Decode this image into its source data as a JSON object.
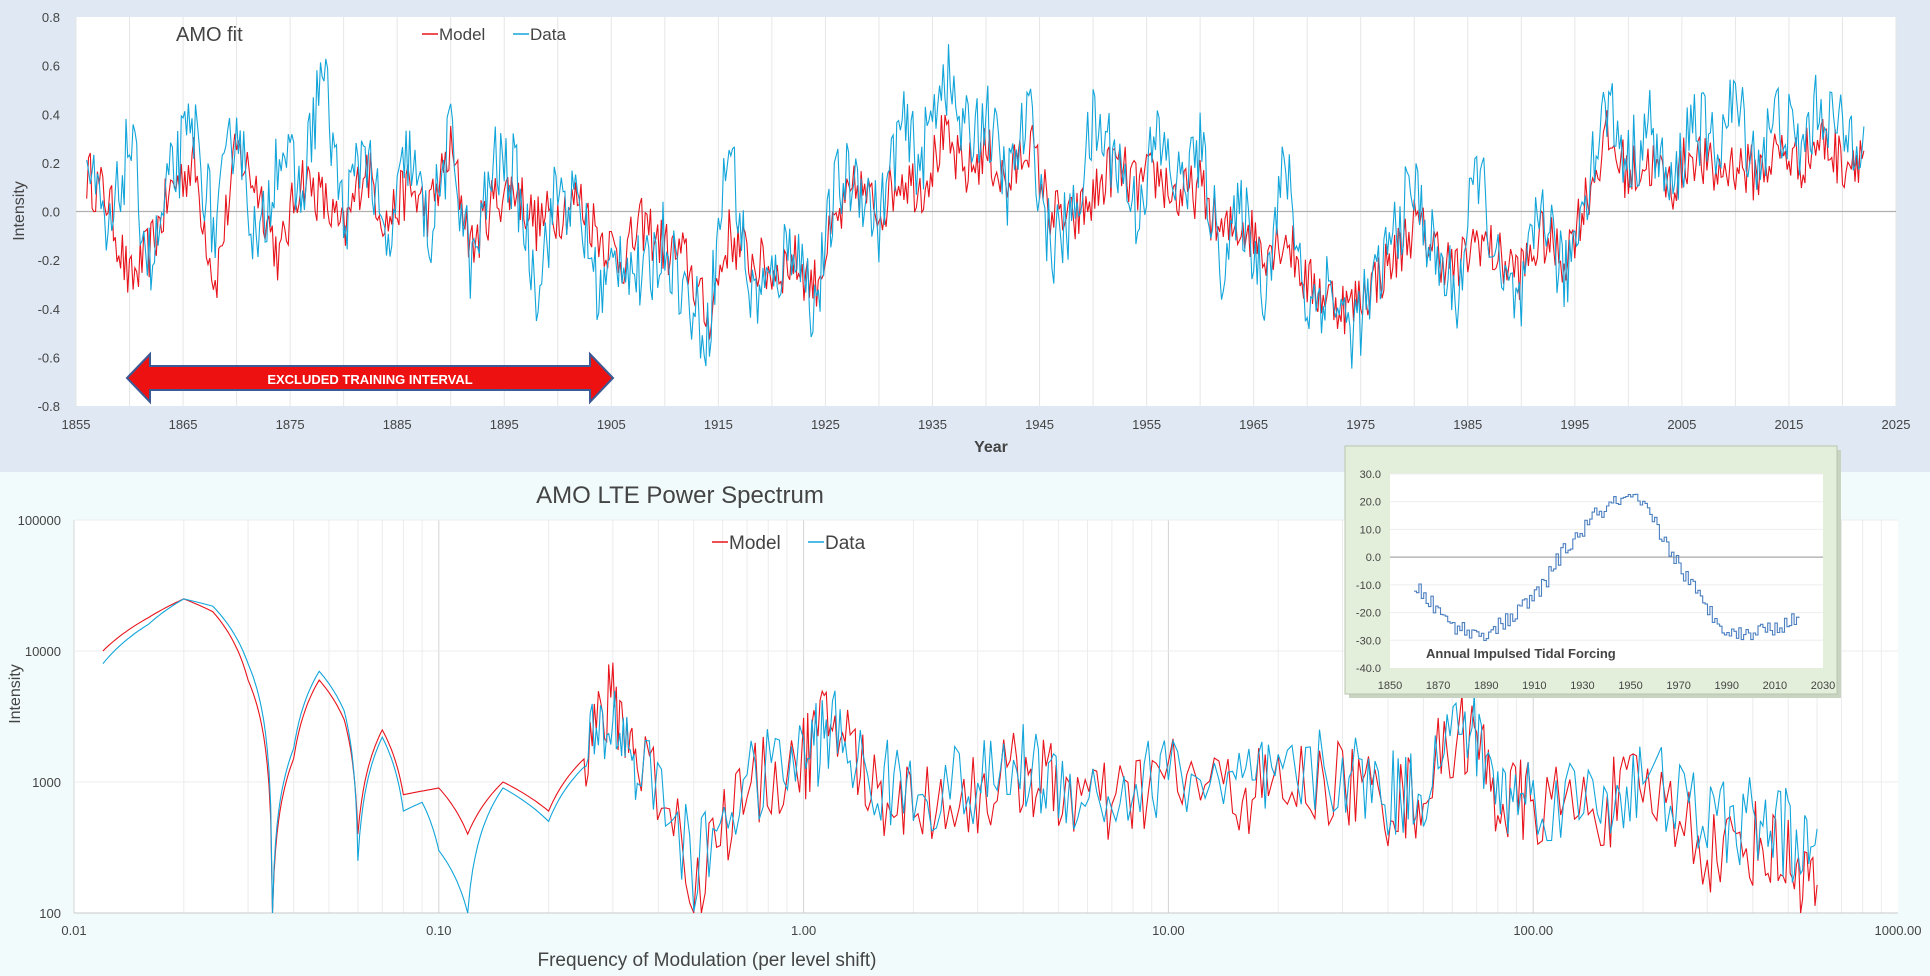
{
  "colors": {
    "model": "#e8141c",
    "data": "#12a5da",
    "top_background": "#dfe8f3",
    "bottom_background": "#f2fbfc",
    "inset_background": "#e4efdb",
    "inset_line": "#4a7fc0",
    "arrow": "#ee1111",
    "arrow_border": "#3c5a96"
  },
  "chart_data": [
    {
      "type": "line",
      "title": "AMO fit",
      "xlabel": "Year",
      "ylabel": "Intensity",
      "xlim": [
        1855,
        2025
      ],
      "ylim": [
        -0.8,
        0.8
      ],
      "x_ticks": [
        1855,
        1865,
        1875,
        1885,
        1895,
        1905,
        1915,
        1925,
        1935,
        1945,
        1955,
        1965,
        1975,
        1985,
        1995,
        2005,
        2015,
        2025
      ],
      "y_ticks": [
        0.8,
        0.6,
        0.4,
        0.2,
        0.0,
        -0.2,
        -0.4,
        -0.6,
        -0.8
      ],
      "grid": "vertical minor lines, zero line",
      "legend_position": "top-center",
      "annotation": {
        "text": "EXCLUDED TRAINING INTERVAL",
        "x_start": 1860,
        "x_end": 1905
      },
      "series": [
        {
          "name": "Model",
          "x": [
            1856,
            1858,
            1860,
            1862,
            1864,
            1866,
            1868,
            1870,
            1872,
            1874,
            1876,
            1878,
            1880,
            1882,
            1884,
            1886,
            1888,
            1890,
            1892,
            1894,
            1896,
            1898,
            1900,
            1902,
            1904,
            1906,
            1908,
            1910,
            1912,
            1914,
            1916,
            1918,
            1920,
            1922,
            1924,
            1926,
            1928,
            1930,
            1932,
            1934,
            1936,
            1938,
            1940,
            1942,
            1944,
            1946,
            1948,
            1950,
            1952,
            1954,
            1956,
            1958,
            1960,
            1962,
            1964,
            1966,
            1968,
            1970,
            1972,
            1974,
            1976,
            1978,
            1980,
            1982,
            1984,
            1986,
            1988,
            1990,
            1992,
            1994,
            1996,
            1998,
            2000,
            2002,
            2004,
            2006,
            2008,
            2010,
            2012,
            2014,
            2016,
            2018,
            2020,
            2022
          ],
          "y": [
            0.15,
            0.05,
            -0.3,
            -0.15,
            0.1,
            0.2,
            -0.3,
            0.25,
            0.1,
            -0.2,
            0.15,
            0.05,
            -0.1,
            0.2,
            -0.05,
            0.1,
            0.0,
            0.25,
            -0.15,
            0.05,
            0.1,
            -0.05,
            0.0,
            0.05,
            -0.1,
            -0.2,
            -0.05,
            -0.15,
            -0.2,
            -0.45,
            -0.1,
            -0.2,
            -0.25,
            -0.2,
            -0.3,
            -0.05,
            0.1,
            0.0,
            0.15,
            0.1,
            0.3,
            0.15,
            0.25,
            0.1,
            0.3,
            0.0,
            -0.05,
            0.05,
            0.2,
            0.1,
            0.15,
            0.05,
            0.1,
            -0.1,
            -0.05,
            -0.15,
            -0.1,
            -0.3,
            -0.35,
            -0.4,
            -0.3,
            -0.2,
            -0.05,
            -0.15,
            -0.25,
            -0.1,
            -0.2,
            -0.25,
            -0.1,
            -0.2,
            0.05,
            0.3,
            0.15,
            0.2,
            0.1,
            0.25,
            0.15,
            0.2,
            0.15,
            0.25,
            0.2,
            0.3,
            0.2,
            0.25
          ]
        },
        {
          "name": "Data",
          "x": [
            1856,
            1858,
            1860,
            1862,
            1864,
            1866,
            1868,
            1870,
            1872,
            1874,
            1876,
            1878,
            1880,
            1882,
            1884,
            1886,
            1888,
            1890,
            1892,
            1894,
            1896,
            1898,
            1900,
            1902,
            1904,
            1906,
            1908,
            1910,
            1912,
            1914,
            1916,
            1918,
            1920,
            1922,
            1924,
            1926,
            1928,
            1930,
            1932,
            1934,
            1936,
            1938,
            1940,
            1942,
            1944,
            1946,
            1948,
            1950,
            1952,
            1954,
            1956,
            1958,
            1960,
            1962,
            1964,
            1966,
            1968,
            1970,
            1972,
            1974,
            1976,
            1978,
            1980,
            1982,
            1984,
            1986,
            1988,
            1990,
            1992,
            1994,
            1996,
            1998,
            2000,
            2002,
            2004,
            2006,
            2008,
            2010,
            2012,
            2014,
            2016,
            2018,
            2020,
            2022
          ],
          "y": [
            0.2,
            -0.15,
            0.3,
            -0.25,
            0.15,
            0.35,
            -0.1,
            0.4,
            -0.2,
            0.3,
            0.05,
            0.6,
            -0.05,
            0.3,
            -0.2,
            0.25,
            -0.1,
            0.3,
            -0.25,
            0.2,
            0.15,
            -0.3,
            0.1,
            0.0,
            -0.35,
            -0.15,
            -0.3,
            -0.1,
            -0.35,
            -0.5,
            0.3,
            -0.35,
            -0.3,
            -0.1,
            -0.4,
            0.1,
            0.15,
            -0.05,
            0.35,
            0.2,
            0.6,
            0.3,
            0.4,
            0.1,
            0.4,
            -0.15,
            -0.05,
            0.35,
            0.25,
            0.0,
            0.3,
            0.1,
            0.25,
            -0.2,
            0.0,
            -0.3,
            0.2,
            -0.4,
            -0.3,
            -0.5,
            -0.35,
            -0.1,
            0.1,
            -0.2,
            -0.35,
            0.2,
            -0.3,
            -0.4,
            0.05,
            -0.3,
            0.1,
            0.45,
            0.2,
            0.35,
            0.05,
            0.4,
            0.25,
            0.45,
            0.2,
            0.4,
            0.25,
            0.45,
            0.3,
            0.35
          ]
        }
      ]
    },
    {
      "type": "line",
      "title": "AMO LTE Power Spectrum",
      "xlabel": "Frequency of Modulation (per level shift)",
      "ylabel": "Intensity",
      "x_scale": "log",
      "y_scale": "log",
      "xlim": [
        0.01,
        1000
      ],
      "ylim": [
        100,
        100000
      ],
      "x_ticks": [
        "0.01",
        "0.10",
        "1.00",
        "10.00",
        "100.00",
        "1000.00"
      ],
      "y_ticks": [
        "100000",
        "10000",
        "1000",
        "100"
      ],
      "legend_position": "top-center",
      "series": [
        {
          "name": "Model",
          "x": [
            0.012,
            0.016,
            0.02,
            0.024,
            0.03,
            0.035,
            0.04,
            0.047,
            0.055,
            0.06,
            0.07,
            0.08,
            0.1,
            0.12,
            0.15,
            0.2,
            0.25,
            0.3,
            0.35,
            0.5,
            0.7,
            1.0,
            1.2,
            1.5,
            2,
            3,
            4,
            5,
            7,
            10,
            15,
            20,
            30,
            40,
            50,
            65,
            80,
            100,
            150,
            200,
            300,
            400,
            500,
            600
          ],
          "y": [
            10000,
            18000,
            25000,
            20000,
            6000,
            100,
            1500,
            6000,
            3000,
            400,
            2500,
            800,
            900,
            400,
            1000,
            600,
            1500,
            4000,
            1500,
            100,
            800,
            1500,
            3000,
            900,
            700,
            800,
            1200,
            900,
            600,
            1100,
            800,
            900,
            1000,
            700,
            800,
            2500,
            700,
            700,
            600,
            900,
            300,
            350,
            250,
            150
          ]
        },
        {
          "name": "Data",
          "x": [
            0.012,
            0.016,
            0.02,
            0.024,
            0.03,
            0.035,
            0.04,
            0.047,
            0.055,
            0.06,
            0.07,
            0.08,
            0.09,
            0.1,
            0.12,
            0.15,
            0.2,
            0.25,
            0.3,
            0.35,
            0.5,
            0.7,
            1.0,
            1.2,
            1.5,
            2,
            3,
            4,
            5,
            7,
            10,
            15,
            20,
            30,
            40,
            50,
            65,
            80,
            100,
            150,
            200,
            300,
            400,
            500,
            600
          ],
          "y": [
            8000,
            16000,
            25000,
            22000,
            8000,
            100,
            1800,
            7000,
            3500,
            250,
            2200,
            600,
            700,
            300,
            100,
            900,
            500,
            1300,
            3000,
            1300,
            150,
            900,
            1600,
            2500,
            1000,
            900,
            900,
            1300,
            1000,
            700,
            1200,
            900,
            1000,
            1200,
            800,
            900,
            2800,
            800,
            800,
            700,
            1000,
            500,
            500,
            400,
            200
          ]
        }
      ]
    },
    {
      "type": "line",
      "title": "Annual Impulsed Tidal Forcing",
      "xlim": [
        1850,
        2030
      ],
      "ylim": [
        -40,
        30
      ],
      "x_ticks": [
        1850,
        1870,
        1890,
        1910,
        1930,
        1950,
        1970,
        1990,
        2010,
        2030
      ],
      "y_ticks": [
        "30.0",
        "20.0",
        "10.0",
        "0.0",
        "-10.0",
        "-20.0",
        "-30.0",
        "-40.0"
      ],
      "series": [
        {
          "name": "",
          "x": [
            1860,
            1865,
            1870,
            1875,
            1880,
            1885,
            1890,
            1895,
            1900,
            1905,
            1910,
            1915,
            1920,
            1925,
            1930,
            1935,
            1940,
            1945,
            1950,
            1955,
            1960,
            1965,
            1970,
            1975,
            1980,
            1985,
            1990,
            1995,
            2000,
            2005,
            2010,
            2015,
            2020
          ],
          "y": [
            -10,
            -15,
            -20,
            -24,
            -26,
            -28,
            -27,
            -25,
            -22,
            -18,
            -14,
            -8,
            0,
            5,
            10,
            15,
            18,
            20,
            21,
            18,
            12,
            4,
            -3,
            -10,
            -17,
            -22,
            -26,
            -28,
            -27,
            -26,
            -25,
            -24,
            -22
          ]
        }
      ]
    }
  ]
}
